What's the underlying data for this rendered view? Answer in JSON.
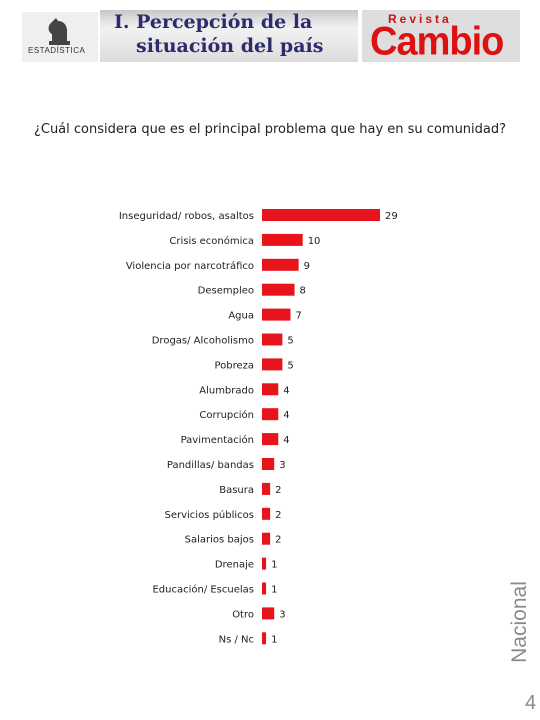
{
  "header": {
    "title_line1": "I. Percepción de la",
    "title_line2": "situación del país",
    "logo_left_text": "ESTADÍSTICA",
    "logo_right_top": "Revista",
    "logo_right_main": "Cambio"
  },
  "question": "¿Cuál considera que es el principal problema que hay en su comunidad?",
  "side_label": "Nacional",
  "page_number": "4",
  "colors": {
    "bar": "#e8141b",
    "title": "#2b2b6e",
    "logo_red": "#dd1111"
  },
  "chart_data": {
    "type": "bar",
    "orientation": "horizontal",
    "title": "",
    "xlabel": "",
    "ylabel": "",
    "xlim": [
      0,
      29
    ],
    "grid": false,
    "categories": [
      "Inseguridad/ robos, asaltos",
      "Crisis económica",
      "Violencia por narcotráfico",
      "Desempleo",
      "Agua",
      "Drogas/ Alcoholismo",
      "Pobreza",
      "Alumbrado",
      "Corrupción",
      "Pavimentación",
      "Pandillas/ bandas",
      "Basura",
      "Servicios públicos",
      "Salarios bajos",
      "Drenaje",
      "Educación/ Escuelas",
      "Otro",
      "Ns / Nc"
    ],
    "values": [
      29,
      10,
      9,
      8,
      7,
      5,
      5,
      4,
      4,
      4,
      3,
      2,
      2,
      2,
      1,
      1,
      3,
      1
    ],
    "value_labels": [
      "29",
      "10",
      "9",
      "8",
      "7",
      "5",
      "5",
      "4",
      "4",
      "4",
      "3",
      "2",
      "2",
      "2",
      "1",
      "1",
      "3",
      "1"
    ]
  }
}
